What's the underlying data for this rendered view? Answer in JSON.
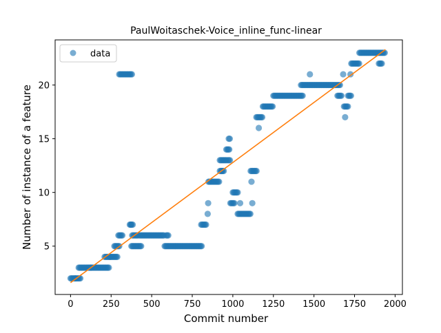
{
  "chart_data": {
    "type": "scatter",
    "title": "PaulWoitaschek-Voice_inline_func-linear",
    "xlabel": "Commit number",
    "ylabel": "Number of instance of a feature",
    "xlim": [
      -95,
      2045
    ],
    "ylim": [
      0.5,
      24.2
    ],
    "xticks": [
      0,
      250,
      500,
      750,
      1000,
      1250,
      1500,
      1750,
      2000
    ],
    "yticks": [
      5,
      10,
      15,
      20
    ],
    "grid": false,
    "legend": {
      "position": "top-left",
      "entries": [
        "data"
      ]
    },
    "colors": {
      "points": "#1f77b4",
      "fit": "#ff7f0e"
    },
    "series": [
      {
        "name": "data",
        "segments": [
          {
            "x": [
              0,
              60
            ],
            "y": 2
          },
          {
            "x": [
              50,
              240
            ],
            "y": 3
          },
          {
            "x": [
              210,
              290
            ],
            "y": 4
          },
          {
            "x": [
              270,
              300
            ],
            "y": 5
          },
          {
            "x": [
              295,
              320
            ],
            "y": 6
          },
          {
            "x": [
              300,
              380
            ],
            "y": 21
          },
          {
            "x": [
              365,
              385
            ],
            "y": 7
          },
          {
            "x": [
              375,
              435
            ],
            "y": 5
          },
          {
            "x": [
              380,
              420
            ],
            "y": 6
          },
          {
            "x": [
              425,
              580
            ],
            "y": 6
          },
          {
            "x": [
              590,
              605
            ],
            "y": 6
          },
          {
            "x": [
              580,
              810
            ],
            "y": 5
          },
          {
            "x": [
              805,
              840
            ],
            "y": 7
          },
          {
            "x": [
              855,
              920
            ],
            "y": 11
          },
          {
            "x": [
              920,
              945
            ],
            "y": 12
          },
          {
            "x": [
              920,
              965
            ],
            "y": 13
          },
          {
            "x": [
              960,
              980
            ],
            "y": 14
          },
          {
            "x": [
              975,
              985
            ],
            "y": 15
          },
          {
            "x": [
              970,
              985
            ],
            "y": 13
          },
          {
            "x": [
              985,
              1010
            ],
            "y": 9
          },
          {
            "x": [
              1000,
              1030
            ],
            "y": 10
          },
          {
            "x": [
              1030,
              1110
            ],
            "y": 8
          },
          {
            "x": [
              1110,
              1150
            ],
            "y": 12
          },
          {
            "x": [
              1145,
              1185
            ],
            "y": 17
          },
          {
            "x": [
              1185,
              1250
            ],
            "y": 18
          },
          {
            "x": [
              1250,
              1430
            ],
            "y": 19
          },
          {
            "x": [
              1420,
              1660
            ],
            "y": 20
          },
          {
            "x": [
              1645,
              1670
            ],
            "y": 19
          },
          {
            "x": [
              1685,
              1710
            ],
            "y": 18
          },
          {
            "x": [
              1710,
              1730
            ],
            "y": 19
          },
          {
            "x": [
              1730,
              1780
            ],
            "y": 22
          },
          {
            "x": [
              1780,
              1940
            ],
            "y": 23
          },
          {
            "x": [
              1900,
              1920
            ],
            "y": 22
          }
        ],
        "points": [
          {
            "x": 30,
            "y": 2
          },
          {
            "x": 125,
            "y": 3
          },
          {
            "x": 243,
            "y": 4
          },
          {
            "x": 372,
            "y": 7
          },
          {
            "x": 845,
            "y": 8
          },
          {
            "x": 848,
            "y": 9
          },
          {
            "x": 850,
            "y": 11
          },
          {
            "x": 932,
            "y": 12
          },
          {
            "x": 1045,
            "y": 9
          },
          {
            "x": 1115,
            "y": 11
          },
          {
            "x": 1120,
            "y": 9
          },
          {
            "x": 1160,
            "y": 16
          },
          {
            "x": 1475,
            "y": 21
          },
          {
            "x": 1680,
            "y": 21
          },
          {
            "x": 1692,
            "y": 17
          },
          {
            "x": 1725,
            "y": 21
          }
        ]
      },
      {
        "name": "",
        "kind": "line",
        "x": [
          0,
          1940
        ],
        "y": [
          1.6,
          23.3
        ]
      }
    ]
  }
}
